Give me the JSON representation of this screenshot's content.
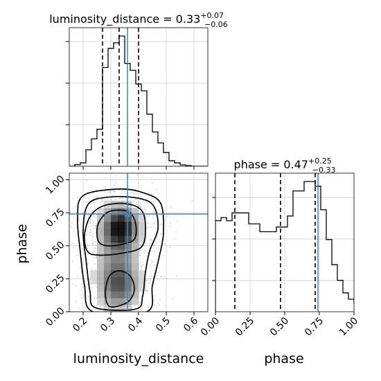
{
  "colors": {
    "truth": "#4682b4",
    "hist": "#000000",
    "grid": "#c8c8c8",
    "contour": "#000000"
  },
  "panels": {
    "luminosity_distance": {
      "title_prefix": "luminosity_distance = 0.33",
      "title_sup": "+0.07",
      "title_sub": "−0.06"
    },
    "phase": {
      "title_prefix": "phase = 0.47",
      "title_sup": "+0.25",
      "title_sub": "−0.33"
    }
  },
  "axes": {
    "x_label": "luminosity_distance",
    "y_label": "phase",
    "phase_x_label": "phase",
    "lum_ticks": [
      "0.2",
      "0.3",
      "0.4",
      "0.5",
      "0.6"
    ],
    "phase_ticks": [
      "0.00",
      "0.25",
      "0.50",
      "0.75",
      "1.00"
    ]
  },
  "chart_data": [
    {
      "type": "bar",
      "panel": "luminosity_distance marginal histogram",
      "x_range": [
        0.15,
        0.65
      ],
      "bin_edges": [
        0.15,
        0.17,
        0.19,
        0.21,
        0.23,
        0.25,
        0.27,
        0.29,
        0.31,
        0.33,
        0.35,
        0.37,
        0.39,
        0.41,
        0.43,
        0.45,
        0.47,
        0.49,
        0.51,
        0.53,
        0.55,
        0.57,
        0.59,
        0.61,
        0.63,
        0.65
      ],
      "values": [
        0,
        0.012,
        0.025,
        0.12,
        0.2,
        0.27,
        0.72,
        0.86,
        0.9,
        0.95,
        0.75,
        0.7,
        0.6,
        0.55,
        0.38,
        0.25,
        0.17,
        0.1,
        0.04,
        0.025,
        0.01,
        0.005,
        0,
        0,
        0
      ],
      "quantiles": [
        0.27,
        0.33,
        0.4
      ],
      "truth": 0.36
    },
    {
      "type": "bar",
      "panel": "phase marginal histogram",
      "x_range": [
        0.0,
        1.0
      ],
      "bin_edges": [
        0.0,
        0.04,
        0.08,
        0.12,
        0.16,
        0.2,
        0.24,
        0.28,
        0.32,
        0.36,
        0.4,
        0.44,
        0.48,
        0.52,
        0.56,
        0.6,
        0.64,
        0.68,
        0.72,
        0.76,
        0.8,
        0.84,
        0.88,
        0.92,
        0.96,
        1.0
      ],
      "values": [
        0.58,
        0.6,
        0.58,
        0.63,
        0.63,
        0.63,
        0.56,
        0.56,
        0.51,
        0.51,
        0.51,
        0.54,
        0.54,
        0.61,
        0.77,
        0.77,
        0.83,
        0.83,
        0.8,
        0.65,
        0.46,
        0.3,
        0.2,
        0.12,
        0.08,
        0.05
      ],
      "quantiles": [
        0.14,
        0.47,
        0.72
      ],
      "truth": 0.74
    },
    {
      "type": "heatmap",
      "panel": "2D joint posterior (luminosity_distance vs phase)",
      "x_range": [
        0.15,
        0.65
      ],
      "y_range": [
        0.0,
        1.05
      ],
      "truth": [
        0.36,
        0.74
      ],
      "density_blobs": [
        {
          "x": 0.335,
          "y": 0.64,
          "sx": 0.04,
          "sy": 0.1,
          "w": 1.0
        },
        {
          "x": 0.33,
          "y": 0.2,
          "sx": 0.045,
          "sy": 0.12,
          "w": 0.6
        },
        {
          "x": 0.32,
          "y": 0.42,
          "sx": 0.05,
          "sy": 0.2,
          "w": 0.35
        }
      ],
      "contours": [
        [
          [
            0.26,
            0.52
          ],
          [
            0.29,
            0.5
          ],
          [
            0.34,
            0.51
          ],
          [
            0.385,
            0.55
          ],
          [
            0.39,
            0.66
          ],
          [
            0.37,
            0.75
          ],
          [
            0.33,
            0.77
          ],
          [
            0.285,
            0.75
          ],
          [
            0.255,
            0.67
          ],
          [
            0.25,
            0.58
          ]
        ],
        [
          [
            0.215,
            0.46
          ],
          [
            0.25,
            0.43
          ],
          [
            0.33,
            0.44
          ],
          [
            0.41,
            0.49
          ],
          [
            0.425,
            0.64
          ],
          [
            0.41,
            0.77
          ],
          [
            0.35,
            0.82
          ],
          [
            0.27,
            0.8
          ],
          [
            0.225,
            0.72
          ],
          [
            0.205,
            0.58
          ]
        ],
        [
          [
            0.29,
            0.05
          ],
          [
            0.32,
            0.04
          ],
          [
            0.365,
            0.08
          ],
          [
            0.385,
            0.17
          ],
          [
            0.37,
            0.27
          ],
          [
            0.33,
            0.31
          ],
          [
            0.295,
            0.27
          ],
          [
            0.28,
            0.15
          ]
        ],
        [
          [
            0.245,
            0.03
          ],
          [
            0.39,
            0.02
          ],
          [
            0.415,
            0.12
          ],
          [
            0.425,
            0.3
          ],
          [
            0.44,
            0.46
          ],
          [
            0.47,
            0.63
          ],
          [
            0.455,
            0.8
          ],
          [
            0.4,
            0.86
          ],
          [
            0.3,
            0.87
          ],
          [
            0.22,
            0.82
          ],
          [
            0.2,
            0.62
          ],
          [
            0.21,
            0.4
          ],
          [
            0.225,
            0.15
          ]
        ],
        [
          [
            0.235,
            0.0
          ],
          [
            0.43,
            0.0
          ],
          [
            0.45,
            0.2
          ],
          [
            0.475,
            0.42
          ],
          [
            0.49,
            0.6
          ],
          [
            0.48,
            0.82
          ],
          [
            0.42,
            0.9
          ],
          [
            0.33,
            0.93
          ],
          [
            0.2,
            0.88
          ],
          [
            0.18,
            0.7
          ],
          [
            0.19,
            0.45
          ],
          [
            0.205,
            0.2
          ]
        ]
      ]
    }
  ]
}
